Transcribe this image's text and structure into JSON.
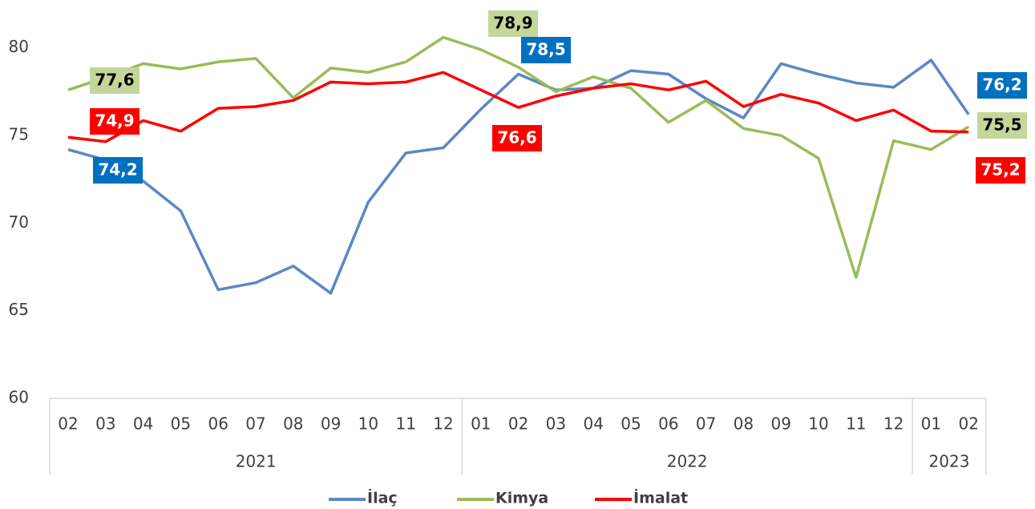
{
  "chart_data": {
    "type": "line",
    "groups": [
      {
        "name": "2021",
        "categories": [
          "02",
          "03",
          "04",
          "05",
          "06",
          "07",
          "08",
          "09",
          "10",
          "11",
          "12"
        ]
      },
      {
        "name": "2022",
        "categories": [
          "01",
          "02",
          "03",
          "04",
          "05",
          "06",
          "07",
          "08",
          "09",
          "10",
          "11",
          "12"
        ]
      },
      {
        "name": "2023",
        "categories": [
          "01",
          "02"
        ]
      }
    ],
    "ylim": [
      60,
      82
    ],
    "yticks": [
      60,
      65,
      70,
      75,
      80
    ],
    "grid": false,
    "legend": "bottom",
    "series": [
      {
        "name": "İlaç",
        "color": "#5b87c5",
        "label_color": "#0070c0",
        "label_text_color": "#ffffff",
        "values": [
          74.2,
          73.6,
          72.4,
          70.7,
          66.2,
          66.6,
          67.55,
          66.0,
          71.2,
          74.0,
          74.3,
          76.5,
          78.5,
          77.6,
          77.7,
          78.7,
          78.5,
          77.1,
          76.0,
          79.1,
          78.5,
          78.0,
          77.75,
          79.3,
          76.2
        ],
        "value_labels": [
          "74,2",
          null,
          null,
          null,
          null,
          null,
          null,
          null,
          null,
          null,
          null,
          null,
          "78,5",
          null,
          null,
          null,
          null,
          null,
          null,
          null,
          null,
          null,
          null,
          null,
          "76,2"
        ]
      },
      {
        "name": "Kimya",
        "color": "#9bbb59",
        "label_color": "#c4d79b",
        "label_text_color": "#000000",
        "values": [
          77.6,
          78.3,
          79.1,
          78.8,
          79.2,
          79.4,
          77.15,
          78.85,
          78.6,
          79.2,
          80.6,
          79.9,
          78.9,
          77.5,
          78.35,
          77.7,
          75.75,
          77.0,
          75.4,
          75.0,
          73.7,
          66.9,
          74.7,
          74.2,
          75.5
        ],
        "value_labels": [
          "77,6",
          null,
          null,
          null,
          null,
          null,
          null,
          null,
          null,
          null,
          null,
          null,
          "78,9",
          null,
          null,
          null,
          null,
          null,
          null,
          null,
          null,
          null,
          null,
          null,
          "75,5"
        ]
      },
      {
        "name": "İmalat",
        "color": "#ff0000",
        "label_color": "#ff0000",
        "label_text_color": "#ffffff",
        "values": [
          74.9,
          74.65,
          75.85,
          75.25,
          76.55,
          76.65,
          77.0,
          78.05,
          77.95,
          78.05,
          78.6,
          77.6,
          76.6,
          77.25,
          77.7,
          77.95,
          77.6,
          78.1,
          76.65,
          77.35,
          76.85,
          75.85,
          76.45,
          75.25,
          75.2
        ],
        "value_labels": [
          "74,9",
          null,
          null,
          null,
          null,
          null,
          null,
          null,
          null,
          null,
          null,
          null,
          "76,6",
          null,
          null,
          null,
          null,
          null,
          null,
          null,
          null,
          null,
          null,
          null,
          "75,2"
        ]
      }
    ]
  }
}
